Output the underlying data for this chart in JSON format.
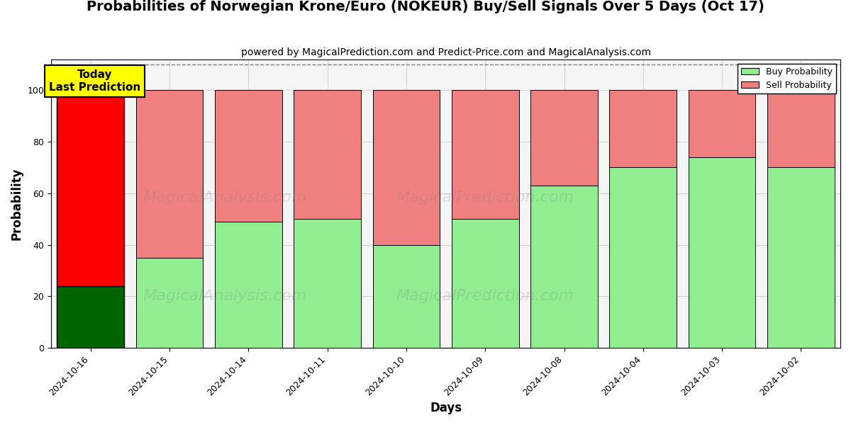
{
  "title": "Probabilities of Norwegian Krone/Euro (NOKEUR) Buy/Sell Signals Over 5 Days (Oct 17)",
  "subtitle": "powered by MagicalPrediction.com and Predict-Price.com and MagicalAnalysis.com",
  "xlabel": "Days",
  "ylabel": "Probability",
  "categories": [
    "2024-10-16",
    "2024-10-15",
    "2024-10-14",
    "2024-10-11",
    "2024-10-10",
    "2024-10-09",
    "2024-10-08",
    "2024-10-04",
    "2024-10-03",
    "2024-10-02"
  ],
  "buy_values": [
    24,
    35,
    49,
    50,
    40,
    50,
    63,
    70,
    74,
    70
  ],
  "sell_values": [
    76,
    65,
    51,
    50,
    60,
    50,
    37,
    30,
    26,
    30
  ],
  "today_index": 0,
  "buy_color_today": "#006400",
  "sell_color_today": "#ff0000",
  "buy_color_normal": "#90ee90",
  "sell_color_normal": "#f08080",
  "today_label_bg": "#ffff00",
  "today_label_text": "Today\nLast Prediction",
  "legend_buy": "Buy Probability",
  "legend_sell": "Sell Probability",
  "ylim": [
    0,
    112
  ],
  "yticks": [
    0,
    20,
    40,
    60,
    80,
    100
  ],
  "dashed_line_y": 110,
  "title_fontsize": 14,
  "subtitle_fontsize": 10,
  "axis_label_fontsize": 12,
  "tick_fontsize": 9,
  "bar_width": 0.85,
  "figsize": [
    12,
    6
  ],
  "dpi": 100,
  "bg_color": "#f5f5f5"
}
